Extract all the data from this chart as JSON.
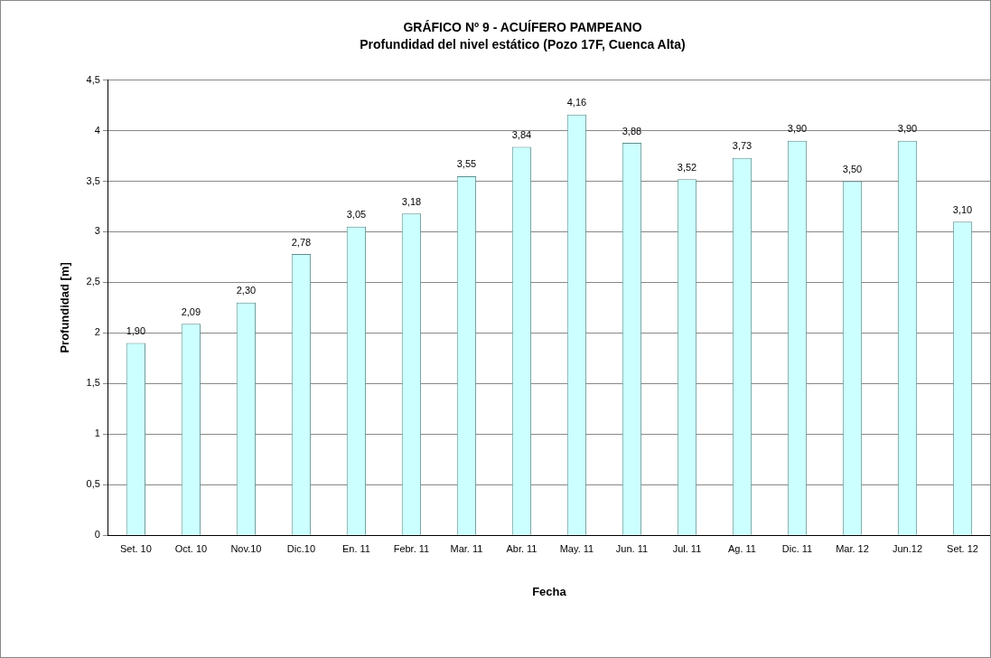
{
  "chart_data": {
    "type": "bar",
    "title": "GRÁFICO Nº 9 - ACUÍFERO PAMPEANO",
    "subtitle": "Profundidad del nivel estático (Pozo 17F, Cuenca Alta)",
    "xlabel": "Fecha",
    "ylabel": "Profundidad [m]",
    "categories": [
      "Set. 10",
      "Oct. 10",
      "Nov.10",
      "Dic.10",
      "En. 11",
      "Febr. 11",
      "Mar. 11",
      "Abr. 11",
      "May. 11",
      "Jun. 11",
      "Jul. 11",
      "Ag. 11",
      "Dic. 11",
      "Mar. 12",
      "Jun.12",
      "Set. 12"
    ],
    "values": [
      1.9,
      2.09,
      2.3,
      2.78,
      3.05,
      3.18,
      3.55,
      3.84,
      4.16,
      3.88,
      3.52,
      3.73,
      3.9,
      3.5,
      3.9,
      3.1
    ],
    "value_labels": [
      "1,90",
      "2,09",
      "2,30",
      "2,78",
      "3,05",
      "3,18",
      "3,55",
      "3,84",
      "4,16",
      "3,88",
      "3,52",
      "3,73",
      "3,90",
      "3,50",
      "3,90",
      "3,10"
    ],
    "color": "#ccffff",
    "ylim": [
      0,
      4.5
    ],
    "yticks": [
      0,
      {
        "value": 0.5,
        "label": "0,5"
      },
      1,
      {
        "value": 1.5,
        "label": "1,5"
      },
      2,
      {
        "value": 2.5,
        "label": "2,5"
      },
      3,
      {
        "value": 3.5,
        "label": "3,5"
      },
      4,
      {
        "value": 4.5,
        "label": "4,5"
      }
    ],
    "grid": "y",
    "legend": false
  }
}
